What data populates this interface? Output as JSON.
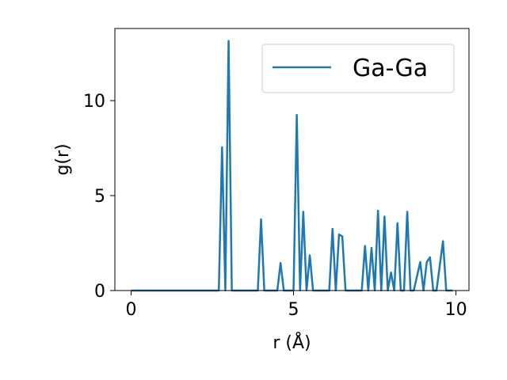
{
  "chart_data": {
    "type": "line",
    "title": "",
    "xlabel": "r (Å)",
    "ylabel": "g(r)",
    "xlim": [
      -0.5,
      10.4
    ],
    "ylim": [
      0,
      13.8
    ],
    "xticks": [
      0,
      5,
      10
    ],
    "xtick_labels": [
      "0",
      "5",
      "10"
    ],
    "yticks": [
      0,
      5,
      10
    ],
    "ytick_labels": [
      "0",
      "5",
      "10"
    ],
    "grid": false,
    "legend_position": "top-right",
    "series": [
      {
        "name": "Ga-Ga",
        "color": "#1f77b4",
        "x": [
          0.0,
          2.7,
          2.8,
          2.9,
          3.0,
          3.1,
          3.9,
          4.0,
          4.1,
          4.5,
          4.6,
          4.7,
          5.0,
          5.1,
          5.2,
          5.3,
          5.4,
          5.5,
          5.6,
          5.7,
          5.8,
          6.1,
          6.2,
          6.3,
          6.4,
          6.5,
          6.6,
          7.1,
          7.2,
          7.3,
          7.4,
          7.5,
          7.6,
          7.7,
          7.8,
          7.9,
          8.0,
          8.1,
          8.2,
          8.3,
          8.4,
          8.5,
          8.6,
          8.7,
          8.9,
          9.0,
          9.1,
          9.2,
          9.3,
          9.4,
          9.6,
          9.7,
          9.8,
          9.9
        ],
        "y": [
          0.0,
          0.0,
          7.55,
          0.0,
          13.15,
          0.0,
          0.0,
          3.75,
          0.0,
          0.0,
          1.45,
          0.0,
          0.0,
          9.25,
          0.0,
          4.15,
          0.0,
          1.85,
          0.0,
          0.0,
          0.0,
          0.0,
          3.25,
          0.0,
          2.95,
          2.85,
          0.0,
          0.0,
          2.35,
          0.0,
          2.25,
          0.0,
          4.2,
          0.0,
          3.9,
          0.0,
          0.95,
          0.0,
          3.55,
          0.0,
          0.0,
          4.15,
          0.0,
          0.0,
          1.5,
          0.0,
          1.5,
          1.75,
          0.0,
          0.0,
          2.6,
          0.0,
          0.0,
          0.0
        ]
      }
    ]
  }
}
